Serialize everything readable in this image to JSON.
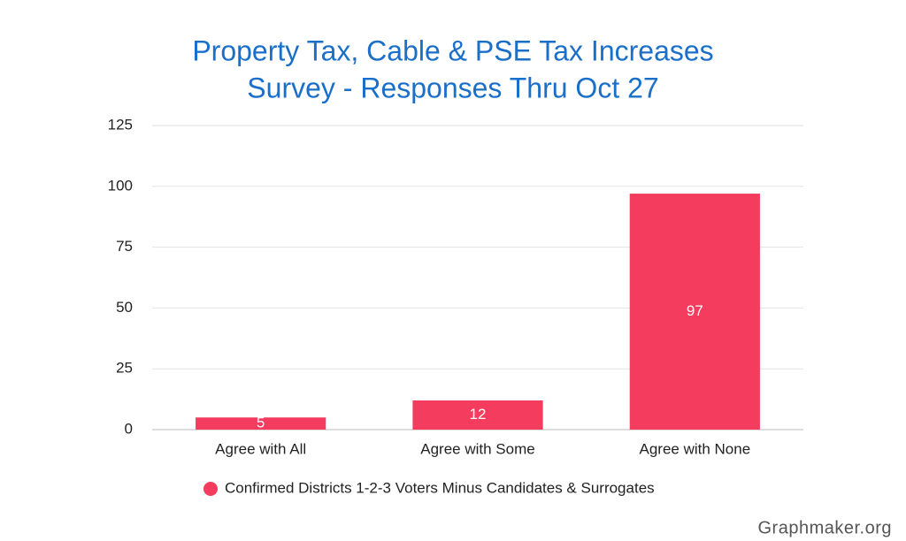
{
  "chart_data": {
    "type": "bar",
    "title": [
      "Property Tax, Cable & PSE Tax Increases",
      "Survey - Responses Thru Oct 27"
    ],
    "categories": [
      "Agree with All",
      "Agree with Some",
      "Agree with None"
    ],
    "series": [
      {
        "name": "Confirmed Districts 1-2-3 Voters Minus Candidates & Surrogates",
        "color": "#f43d5e",
        "values": [
          5,
          12,
          97
        ]
      }
    ],
    "ylim": [
      0,
      125
    ],
    "yticks": [
      0,
      25,
      50,
      75,
      100,
      125
    ],
    "grid": true,
    "legend": "bottom",
    "watermark": "Graphmaker.org"
  }
}
